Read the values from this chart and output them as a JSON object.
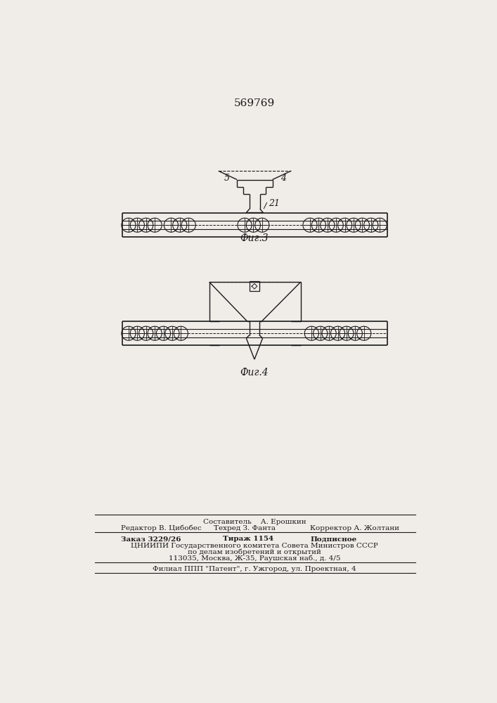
{
  "title": "569769",
  "title_fontsize": 11,
  "fig3_label": "Фиг.3",
  "fig4_label": "Фиг.4",
  "label_5": "5",
  "label_4": "4",
  "label_21": "21",
  "bg_color": "#f0ede8",
  "line_color": "#1a1a1a",
  "footer_line1": "Составитель    А. Ерошкин",
  "footer_line2a": "Редактор В. Цибобес",
  "footer_line2b": "Техред З. Фанта",
  "footer_line2c": "Корректор А. Жолтани",
  "footer_line3a": "Заказ 3229/26",
  "footer_line3b": "Тираж 1154",
  "footer_line3c": "Подписное",
  "footer_line4": "ЦНИИПИ Государственного комитета Совета Министров СССР",
  "footer_line5": "по делам изобретений и открытий",
  "footer_line6": "113035, Москва, Ж-35, Раушская наб., д. 4/5",
  "footer_line7": "Филиал ППП \"Патент\", г. Ужгород, ул. Проектная, 4"
}
